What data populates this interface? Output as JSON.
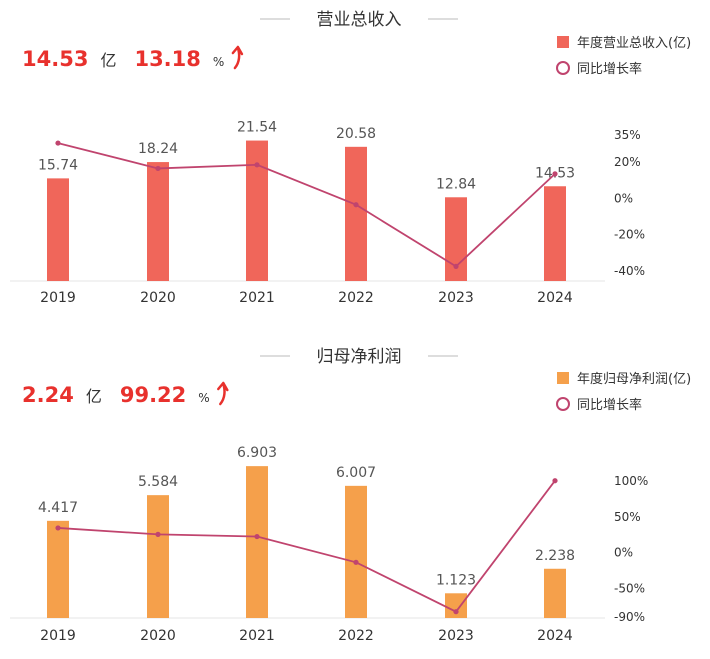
{
  "chart_data": [
    {
      "type": "bar",
      "title": "营业总收入",
      "headline": {
        "value": "14.53",
        "value_unit": "亿",
        "growth": "13.18",
        "growth_unit": "%",
        "arrow": "up-arrow-icon"
      },
      "categories": [
        "2019",
        "2020",
        "2021",
        "2022",
        "2023",
        "2024"
      ],
      "series": [
        {
          "name": "年度营业总收入(亿)",
          "type": "bar",
          "values": [
            15.74,
            18.24,
            21.54,
            20.58,
            12.84,
            14.53
          ],
          "labels": [
            "15.74",
            "18.24",
            "21.54",
            "20.58",
            "12.84",
            "14.53"
          ],
          "color": "#f0665a"
        },
        {
          "name": "同比增长率",
          "type": "line",
          "axis": "right",
          "values": [
            30,
            16,
            18,
            -4,
            -38,
            13
          ],
          "color": "#c0446e"
        }
      ],
      "y_left_range": [
        0,
        25
      ],
      "y_right": {
        "ticks": [
          35,
          20,
          0,
          -20,
          -40
        ],
        "tick_labels": [
          "35%",
          "20%",
          "0%",
          "-20%",
          "-40%"
        ],
        "range": [
          -40,
          35
        ]
      },
      "legend_position": "top-right",
      "grid": false
    },
    {
      "type": "bar",
      "title": "归母净利润",
      "headline": {
        "value": "2.24",
        "value_unit": "亿",
        "growth": "99.22",
        "growth_unit": "%",
        "arrow": "up-arrow-icon"
      },
      "categories": [
        "2019",
        "2020",
        "2021",
        "2022",
        "2023",
        "2024"
      ],
      "series": [
        {
          "name": "年度归母净利润(亿)",
          "type": "bar",
          "values": [
            4.417,
            5.584,
            6.903,
            6.007,
            1.123,
            2.238
          ],
          "labels": [
            "4.417",
            "5.584",
            "6.903",
            "6.007",
            "1.123",
            "2.238"
          ],
          "color": "#f5a04b"
        },
        {
          "name": "同比增长率",
          "type": "line",
          "axis": "right",
          "values": [
            33,
            24,
            21,
            -15,
            -84,
            99
          ],
          "color": "#c0446e"
        }
      ],
      "y_left_range": [
        0,
        8
      ],
      "y_right": {
        "ticks": [
          100,
          50,
          0,
          -50,
          -90
        ],
        "tick_labels": [
          "100%",
          "50%",
          "0%",
          "-50%",
          "-90%"
        ],
        "range": [
          -90,
          100
        ]
      },
      "legend_position": "top-right",
      "grid": false
    }
  ]
}
